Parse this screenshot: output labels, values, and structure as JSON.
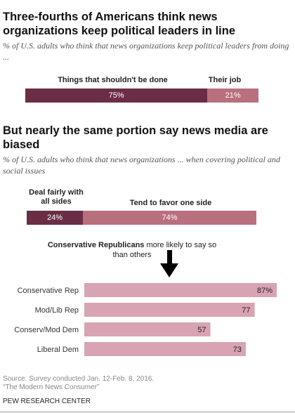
{
  "section1": {
    "title": "Three-fourths of Americans think news organizations keep political leaders in line",
    "subtitle": "% of U.S. adults who think that news organizations keep political leaders from doing ..."
  },
  "section2": {
    "title": "But nearly the same portion say news media are biased",
    "subtitle": "% of U.S. adults who think that news organizations ... when covering political and social issues",
    "note_bold": "Conservative Republicans",
    "note_rest": " more likely to say so than others"
  },
  "footer": {
    "source": "Source: Survey conducted Jan. 12-Feb. 8, 2016.",
    "report": "“The Modern News Consumer”",
    "org": "PEW RESEARCH CENTER"
  },
  "colors": {
    "dark": "#6b2d45",
    "light": "#b8707f",
    "pink": "#d8a3b2"
  },
  "chart_data": [
    {
      "type": "bar",
      "stacked": true,
      "orientation": "horizontal",
      "series": [
        {
          "name": "Things that shouldn't be done",
          "value": 75,
          "label": "75%"
        },
        {
          "name": "Their job",
          "value": 21,
          "label": "21%"
        }
      ]
    },
    {
      "type": "bar",
      "stacked": true,
      "orientation": "horizontal",
      "series": [
        {
          "name": "Deal fairly with all sides",
          "value": 24,
          "label": "24%"
        },
        {
          "name": "Tend to favor one side",
          "value": 74,
          "label": "74%"
        }
      ]
    },
    {
      "type": "bar",
      "orientation": "horizontal",
      "categories": [
        "Conservative Rep",
        "Mod/Lib Rep",
        "Conserv/Mod Dem",
        "Liberal Dem"
      ],
      "values": [
        87,
        77,
        57,
        73
      ],
      "labels": [
        "87%",
        "77",
        "57",
        "73"
      ],
      "xlim": [
        0,
        100
      ]
    }
  ]
}
